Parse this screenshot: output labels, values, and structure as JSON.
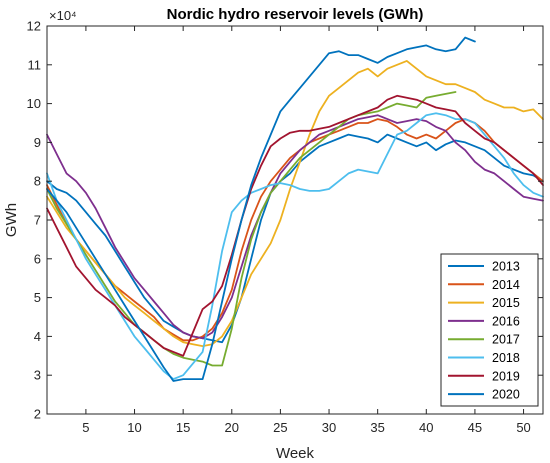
{
  "chart_data": {
    "type": "line",
    "title": "Nordic hydro reservoir levels (GWh)",
    "xlabel": "Week",
    "ylabel": "GWh",
    "y_exponent_label": "×10⁴",
    "xlim": [
      1,
      52
    ],
    "ylim": [
      2,
      12
    ],
    "xticks": [
      5,
      10,
      15,
      20,
      25,
      30,
      35,
      40,
      45,
      50
    ],
    "yticks": [
      2,
      3,
      4,
      5,
      6,
      7,
      8,
      9,
      10,
      11,
      12
    ],
    "grid": false,
    "legend_position": "bottom-right",
    "series": [
      {
        "name": "2013",
        "color": "#0072BD",
        "x": [
          1,
          2,
          3,
          4,
          5,
          6,
          7,
          8,
          9,
          10,
          11,
          12,
          13,
          14,
          15,
          16,
          17,
          18,
          19,
          20,
          21,
          22,
          23,
          24,
          25,
          26,
          27,
          28,
          29,
          30,
          31,
          32,
          33,
          34,
          35,
          36,
          37,
          38,
          39,
          40,
          41,
          42,
          43,
          44,
          45,
          46,
          47,
          48,
          49,
          50,
          51,
          52
        ],
        "y": [
          8.0,
          7.8,
          7.7,
          7.5,
          7.2,
          6.9,
          6.6,
          6.2,
          5.8,
          5.4,
          5.0,
          4.7,
          4.4,
          4.25,
          4.1,
          4.0,
          3.95,
          3.9,
          3.85,
          4.3,
          5.0,
          6.0,
          7.0,
          7.7,
          8.0,
          8.2,
          8.5,
          8.7,
          8.9,
          9.0,
          9.1,
          9.2,
          9.15,
          9.1,
          9.0,
          9.2,
          9.1,
          9.0,
          8.9,
          9.0,
          8.8,
          8.95,
          9.05,
          9.0,
          8.9,
          8.8,
          8.6,
          8.4,
          8.3,
          8.2,
          8.15,
          8.0
        ]
      },
      {
        "name": "2014",
        "color": "#D95319",
        "x": [
          1,
          2,
          3,
          4,
          5,
          6,
          7,
          8,
          9,
          10,
          11,
          12,
          13,
          14,
          15,
          16,
          17,
          18,
          19,
          20,
          21,
          22,
          23,
          24,
          25,
          26,
          27,
          28,
          29,
          30,
          31,
          32,
          33,
          34,
          35,
          36,
          37,
          38,
          39,
          40,
          41,
          42,
          43,
          44,
          45,
          46,
          47,
          48,
          49,
          50,
          51,
          52
        ],
        "y": [
          7.9,
          7.4,
          6.9,
          6.5,
          6.2,
          5.9,
          5.6,
          5.3,
          5.1,
          4.9,
          4.7,
          4.5,
          4.2,
          4.05,
          3.9,
          3.9,
          4.0,
          4.2,
          4.6,
          5.2,
          6.2,
          7.0,
          7.6,
          8.0,
          8.3,
          8.6,
          8.8,
          9.0,
          9.1,
          9.2,
          9.3,
          9.4,
          9.5,
          9.5,
          9.6,
          9.55,
          9.4,
          9.2,
          9.1,
          9.2,
          9.1,
          9.3,
          9.5,
          9.6,
          9.5,
          9.3,
          9.0,
          8.8,
          8.6,
          8.4,
          8.2,
          8.0
        ]
      },
      {
        "name": "2015",
        "color": "#EDB120",
        "x": [
          1,
          2,
          3,
          4,
          5,
          6,
          7,
          8,
          9,
          10,
          11,
          12,
          13,
          14,
          15,
          16,
          17,
          18,
          19,
          20,
          21,
          22,
          23,
          24,
          25,
          26,
          27,
          28,
          29,
          30,
          31,
          32,
          33,
          34,
          35,
          36,
          37,
          38,
          39,
          40,
          41,
          42,
          43,
          44,
          45,
          46,
          47,
          48,
          49,
          50,
          51,
          52
        ],
        "y": [
          7.6,
          7.2,
          6.8,
          6.5,
          6.2,
          5.9,
          5.6,
          5.3,
          5.0,
          4.8,
          4.6,
          4.4,
          4.2,
          4.0,
          3.85,
          3.8,
          3.75,
          3.8,
          4.0,
          4.4,
          5.0,
          5.6,
          6.0,
          6.4,
          7.0,
          7.8,
          8.5,
          9.2,
          9.8,
          10.2,
          10.4,
          10.6,
          10.8,
          10.9,
          10.7,
          10.9,
          11.0,
          11.1,
          10.9,
          10.7,
          10.6,
          10.5,
          10.5,
          10.4,
          10.3,
          10.1,
          10.0,
          9.9,
          9.9,
          9.8,
          9.85,
          9.6
        ]
      },
      {
        "name": "2016",
        "color": "#7E2F8E",
        "x": [
          1,
          2,
          3,
          4,
          5,
          6,
          7,
          8,
          9,
          10,
          11,
          12,
          13,
          14,
          15,
          16,
          17,
          18,
          19,
          20,
          21,
          22,
          23,
          24,
          25,
          26,
          27,
          28,
          29,
          30,
          31,
          32,
          33,
          34,
          35,
          36,
          37,
          38,
          39,
          40,
          41,
          42,
          43,
          44,
          45,
          46,
          47,
          48,
          49,
          50,
          51,
          52
        ],
        "y": [
          9.2,
          8.7,
          8.2,
          8.0,
          7.7,
          7.3,
          6.8,
          6.3,
          5.9,
          5.5,
          5.2,
          4.9,
          4.6,
          4.3,
          4.1,
          4.0,
          3.95,
          4.1,
          4.5,
          5.0,
          5.8,
          6.6,
          7.2,
          7.7,
          8.2,
          8.5,
          8.8,
          9.0,
          9.2,
          9.3,
          9.4,
          9.5,
          9.6,
          9.65,
          9.7,
          9.6,
          9.5,
          9.55,
          9.6,
          9.55,
          9.4,
          9.3,
          9.0,
          8.8,
          8.5,
          8.3,
          8.2,
          8.0,
          7.8,
          7.6,
          7.55,
          7.5
        ]
      },
      {
        "name": "2017",
        "color": "#77AC30",
        "x": [
          1,
          2,
          3,
          4,
          5,
          6,
          7,
          8,
          9,
          10,
          11,
          12,
          13,
          14,
          15,
          16,
          17,
          18,
          19,
          20,
          21,
          22,
          23,
          24,
          25,
          26,
          27,
          28,
          29,
          30,
          31,
          32,
          33,
          34,
          35,
          36,
          37,
          38,
          39,
          40,
          41,
          42,
          43
        ],
        "y": [
          7.8,
          7.3,
          6.9,
          6.5,
          6.1,
          5.7,
          5.3,
          4.9,
          4.6,
          4.3,
          4.1,
          3.9,
          3.7,
          3.55,
          3.45,
          3.4,
          3.35,
          3.25,
          3.25,
          4.2,
          5.5,
          6.5,
          7.2,
          7.7,
          8.0,
          8.3,
          8.6,
          8.8,
          9.0,
          9.2,
          9.4,
          9.6,
          9.7,
          9.75,
          9.8,
          9.9,
          10.0,
          9.95,
          9.9,
          10.15,
          10.2,
          10.25,
          10.3
        ]
      },
      {
        "name": "2018",
        "color": "#4DBEEE",
        "x": [
          1,
          2,
          3,
          4,
          5,
          6,
          7,
          8,
          9,
          10,
          11,
          12,
          13,
          14,
          15,
          16,
          17,
          18,
          19,
          20,
          21,
          22,
          23,
          24,
          25,
          26,
          27,
          28,
          29,
          30,
          31,
          32,
          33,
          34,
          35,
          36,
          37,
          38,
          39,
          40,
          41,
          42,
          43,
          44,
          45,
          46,
          47,
          48,
          49,
          50,
          51,
          52
        ],
        "y": [
          8.2,
          7.5,
          7.0,
          6.5,
          6.0,
          5.6,
          5.2,
          4.8,
          4.4,
          4.0,
          3.7,
          3.4,
          3.1,
          2.9,
          3.0,
          3.3,
          3.6,
          4.8,
          6.2,
          7.2,
          7.5,
          7.7,
          7.8,
          7.9,
          7.95,
          7.9,
          7.8,
          7.75,
          7.75,
          7.8,
          8.0,
          8.2,
          8.3,
          8.25,
          8.2,
          8.7,
          9.2,
          9.3,
          9.5,
          9.7,
          9.75,
          9.7,
          9.6,
          9.6,
          9.5,
          9.2,
          8.9,
          8.6,
          8.2,
          7.9,
          7.7,
          7.6
        ]
      },
      {
        "name": "2019",
        "color": "#A2142F",
        "x": [
          1,
          2,
          3,
          4,
          5,
          6,
          7,
          8,
          9,
          10,
          11,
          12,
          13,
          14,
          15,
          16,
          17,
          18,
          19,
          20,
          21,
          22,
          23,
          24,
          25,
          26,
          27,
          28,
          29,
          30,
          31,
          32,
          33,
          34,
          35,
          36,
          37,
          38,
          39,
          40,
          41,
          42,
          43,
          44,
          45,
          46,
          47,
          48,
          49,
          50,
          51,
          52
        ],
        "y": [
          7.3,
          6.8,
          6.3,
          5.8,
          5.5,
          5.2,
          5.0,
          4.8,
          4.5,
          4.3,
          4.1,
          3.9,
          3.7,
          3.6,
          3.5,
          4.1,
          4.7,
          4.9,
          5.3,
          6.1,
          7.0,
          7.8,
          8.4,
          8.9,
          9.1,
          9.25,
          9.3,
          9.3,
          9.35,
          9.4,
          9.5,
          9.6,
          9.7,
          9.8,
          9.9,
          10.1,
          10.2,
          10.15,
          10.1,
          10.0,
          9.9,
          9.85,
          9.8,
          9.5,
          9.3,
          9.1,
          9.0,
          8.8,
          8.6,
          8.4,
          8.2,
          7.9
        ]
      },
      {
        "name": "2020",
        "color": "#0072BD",
        "x": [
          1,
          2,
          3,
          4,
          5,
          6,
          7,
          8,
          9,
          10,
          11,
          12,
          13,
          14,
          15,
          16,
          17,
          18,
          19,
          20,
          21,
          22,
          23,
          24,
          25,
          26,
          27,
          28,
          29,
          30,
          31,
          32,
          33,
          34,
          35,
          36,
          37,
          38,
          39,
          40,
          41,
          42,
          43,
          44,
          45
        ],
        "y": [
          7.8,
          7.5,
          7.2,
          6.8,
          6.4,
          6.0,
          5.6,
          5.2,
          4.8,
          4.4,
          4.0,
          3.6,
          3.2,
          2.85,
          2.9,
          2.9,
          2.9,
          3.8,
          4.9,
          6.0,
          7.0,
          7.9,
          8.6,
          9.2,
          9.8,
          10.1,
          10.4,
          10.7,
          11.0,
          11.3,
          11.35,
          11.25,
          11.25,
          11.15,
          11.05,
          11.2,
          11.3,
          11.4,
          11.45,
          11.5,
          11.4,
          11.35,
          11.4,
          11.7,
          11.6
        ]
      }
    ]
  }
}
